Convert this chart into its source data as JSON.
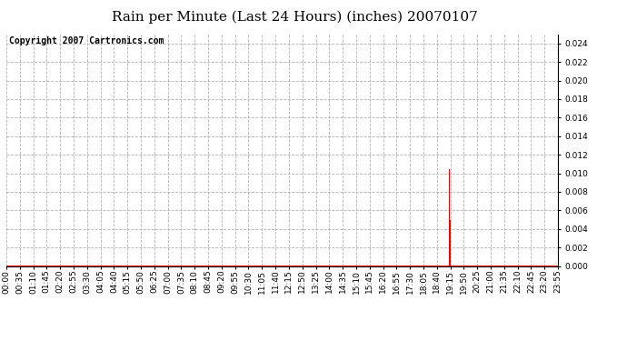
{
  "title": "Rain per Minute (Last 24 Hours) (inches) 20070107",
  "copyright_text": "Copyright 2007 Cartronics.com",
  "background_color": "#ffffff",
  "plot_background_color": "#ffffff",
  "bar_color": "#ff0000",
  "baseline_color": "#ff0000",
  "grid_color": "#b0b0b0",
  "grid_linestyle": "--",
  "ylim": [
    0.0,
    0.025
  ],
  "yticks": [
    0.0,
    0.002,
    0.004,
    0.006,
    0.008,
    0.01,
    0.012,
    0.014,
    0.016,
    0.018,
    0.02,
    0.022,
    0.024
  ],
  "minutes_total": 1440,
  "rain_spikes": [
    {
      "minute": 1155,
      "value": 0.0104
    },
    {
      "minute": 1156,
      "value": 0.0104
    },
    {
      "minute": 1157,
      "value": 0.005
    },
    {
      "minute": 1158,
      "value": 0.005
    },
    {
      "minute": 1159,
      "value": 0.001
    },
    {
      "minute": 1160,
      "value": 0.001
    }
  ],
  "x_tick_labels": [
    "00:00",
    "00:35",
    "01:10",
    "01:45",
    "02:20",
    "02:55",
    "03:30",
    "04:05",
    "04:40",
    "05:15",
    "05:50",
    "06:25",
    "07:00",
    "07:35",
    "08:10",
    "08:45",
    "09:20",
    "09:55",
    "10:30",
    "11:05",
    "11:40",
    "12:15",
    "12:50",
    "13:25",
    "14:00",
    "14:35",
    "15:10",
    "15:45",
    "16:20",
    "16:55",
    "17:30",
    "18:05",
    "18:40",
    "19:15",
    "19:50",
    "20:25",
    "21:00",
    "21:35",
    "22:10",
    "22:45",
    "23:20",
    "23:55"
  ],
  "title_fontsize": 11,
  "tick_fontsize": 6.5,
  "copyright_fontsize": 7
}
